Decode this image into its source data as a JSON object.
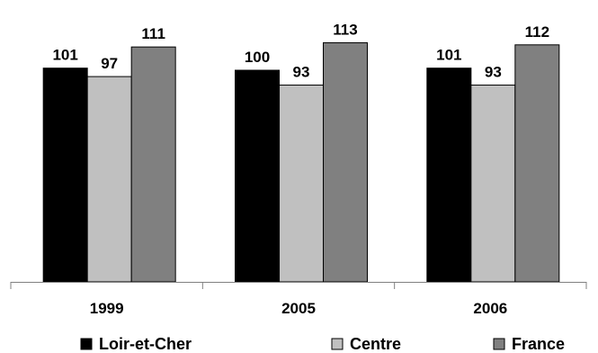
{
  "chart_data": {
    "type": "bar",
    "categories": [
      "1999",
      "2005",
      "2006"
    ],
    "series": [
      {
        "name": "Loir-et-Cher",
        "values": [
          101,
          100,
          101
        ],
        "color": "#000000"
      },
      {
        "name": "Centre",
        "values": [
          97,
          93,
          93
        ],
        "color": "#c0c0c0"
      },
      {
        "name": "France",
        "values": [
          111,
          113,
          112
        ],
        "color": "#808080"
      }
    ],
    "title": "",
    "xlabel": "",
    "ylabel": "",
    "ylim": [
      0,
      120
    ],
    "grid": false,
    "legend": "bottom"
  }
}
